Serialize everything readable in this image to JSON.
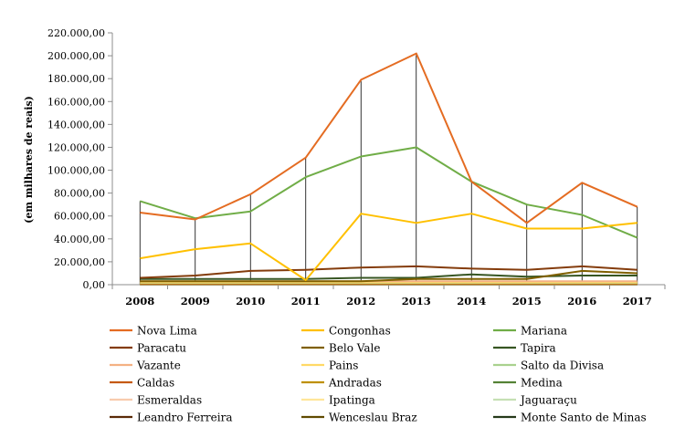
{
  "chart_data": {
    "type": "line",
    "title": "",
    "xlabel": "",
    "ylabel": "(em milhares de reais)",
    "ylim": [
      0,
      220000
    ],
    "ytick_values": [
      0,
      20000,
      40000,
      60000,
      80000,
      100000,
      120000,
      140000,
      160000,
      180000,
      200000,
      220000
    ],
    "ytick_labels": [
      "0,00",
      "20.000,00",
      "40.000,00",
      "60.000,00",
      "80.000,00",
      "100.000,00",
      "120.000,00",
      "140.000,00",
      "160.000,00",
      "180.000,00",
      "200.000,00",
      "220.000,00"
    ],
    "categories": [
      "2008",
      "2009",
      "2010",
      "2011",
      "2012",
      "2013",
      "2014",
      "2015",
      "2016",
      "2017"
    ],
    "grid": false,
    "drop_lines": true,
    "legend_position": "bottom",
    "series": [
      {
        "name": "Nova Lima",
        "color": "#E46C22",
        "values": [
          63000,
          57000,
          79000,
          111000,
          179000,
          202000,
          90000,
          54000,
          89000,
          68000
        ]
      },
      {
        "name": "Congonhas",
        "color": "#FFC000",
        "values": [
          23000,
          31000,
          36000,
          4000,
          62000,
          54000,
          62000,
          49000,
          49000,
          54000
        ]
      },
      {
        "name": "Mariana",
        "color": "#70AD47",
        "values": [
          73000,
          58000,
          64000,
          94000,
          112000,
          120000,
          90000,
          70000,
          61000,
          41000
        ]
      },
      {
        "name": "Paracatu",
        "color": "#843C0C",
        "values": [
          6000,
          8000,
          12000,
          13000,
          15000,
          16000,
          14000,
          13000,
          16000,
          13000
        ]
      },
      {
        "name": "Belo Vale",
        "color": "#806000",
        "values": [
          3000,
          3000,
          3000,
          3000,
          3000,
          5000,
          5000,
          5000,
          12000,
          10000
        ]
      },
      {
        "name": "Tapira",
        "color": "#375623",
        "values": [
          5000,
          5000,
          5000,
          5000,
          6000,
          6000,
          9000,
          7000,
          8000,
          8000
        ]
      },
      {
        "name": "Vazante",
        "color": "#F4B183",
        "values": [
          3000,
          3000,
          3000,
          3000,
          3000,
          3000,
          3000,
          3000,
          3000,
          3000
        ]
      },
      {
        "name": "Pains",
        "color": "#FFD966",
        "values": [
          2000,
          2000,
          2000,
          2000,
          2000,
          2000,
          2000,
          2000,
          2000,
          2000
        ]
      },
      {
        "name": "Salto da Divisa",
        "color": "#A9D18E",
        "values": [
          1500,
          1500,
          1500,
          1500,
          1500,
          1500,
          1500,
          1500,
          1500,
          1500
        ]
      },
      {
        "name": "Caldas",
        "color": "#C55A11",
        "values": [
          1000,
          1000,
          1000,
          1000,
          1000,
          1000,
          1000,
          1000,
          1000,
          1000
        ]
      },
      {
        "name": "Andradas",
        "color": "#BF9000",
        "values": [
          800,
          800,
          800,
          800,
          800,
          800,
          800,
          800,
          800,
          800
        ]
      },
      {
        "name": "Medina",
        "color": "#548235",
        "values": [
          700,
          700,
          700,
          700,
          700,
          700,
          700,
          700,
          700,
          700
        ]
      },
      {
        "name": "Esmeraldas",
        "color": "#F8CBAD",
        "values": [
          500,
          500,
          500,
          500,
          500,
          500,
          500,
          500,
          500,
          500
        ]
      },
      {
        "name": "Ipatinga",
        "color": "#FFE699",
        "values": [
          400,
          400,
          400,
          400,
          400,
          400,
          400,
          400,
          400,
          400
        ]
      },
      {
        "name": "Jaguaraçu",
        "color": "#C5E0B4",
        "values": [
          300,
          300,
          300,
          300,
          300,
          300,
          300,
          300,
          300,
          300
        ]
      },
      {
        "name": "Leandro Ferreira",
        "color": "#5A2A07",
        "values": [
          200,
          200,
          200,
          200,
          200,
          200,
          200,
          200,
          200,
          200
        ]
      },
      {
        "name": "Wenceslau Braz",
        "color": "#604A00",
        "values": [
          150,
          150,
          150,
          150,
          150,
          150,
          150,
          150,
          150,
          150
        ]
      },
      {
        "name": "Monte Santo de Minas",
        "color": "#26391A",
        "values": [
          100,
          100,
          100,
          100,
          100,
          100,
          100,
          100,
          100,
          100
        ]
      }
    ]
  }
}
